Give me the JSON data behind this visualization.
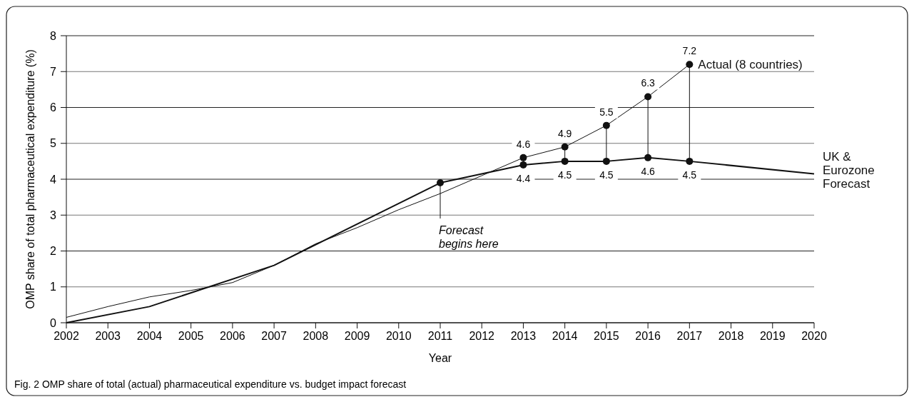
{
  "chart_data": {
    "type": "line",
    "xlabel": "Year",
    "ylabel": "OMP share of total pharmaceutical expenditure (%)",
    "xlim": [
      2002,
      2020
    ],
    "xticks": [
      2002,
      2003,
      2004,
      2005,
      2006,
      2007,
      2008,
      2009,
      2010,
      2011,
      2012,
      2013,
      2014,
      2015,
      2016,
      2017,
      2018,
      2019,
      2020
    ],
    "ylim": [
      0,
      8
    ],
    "yticks": [
      0,
      1,
      2,
      3,
      4,
      5,
      6,
      7,
      8
    ],
    "grid": "y",
    "legend": false,
    "series": [
      {
        "name": "Actual (8 countries)",
        "color": "#111111",
        "x": [
          2002,
          2003,
          2004,
          2005,
          2006,
          2007,
          2008,
          2009,
          2010,
          2011,
          2012,
          2013,
          2014,
          2015,
          2016,
          2017
        ],
        "values": [
          0.15,
          0.45,
          0.72,
          0.9,
          1.12,
          1.6,
          2.2,
          2.65,
          3.15,
          3.6,
          4.1,
          4.6,
          4.9,
          5.5,
          6.3,
          7.2
        ],
        "value_labels": [
          null,
          null,
          null,
          null,
          null,
          null,
          null,
          null,
          null,
          null,
          null,
          "4.6",
          "4.9",
          "5.5",
          "6.3",
          "7.2"
        ]
      },
      {
        "name": "UK & Eurozone Forecast",
        "color": "#111111",
        "x": [
          2002,
          2004,
          2007,
          2011,
          2013,
          2014,
          2015,
          2016,
          2017,
          2020
        ],
        "values": [
          0,
          0.45,
          1.6,
          3.9,
          4.4,
          4.5,
          4.5,
          4.6,
          4.5,
          4.15
        ],
        "value_labels": [
          null,
          null,
          null,
          null,
          "4.4",
          "4.5",
          "4.5",
          "4.6",
          "4.5",
          null
        ]
      }
    ],
    "annotations": [
      {
        "text": "Forecast begins here",
        "x": 2011,
        "y": 3.9
      },
      "Fig. 2 OMP share of total (actual) pharmaceutical expenditure vs. budget impact forecast"
    ]
  }
}
